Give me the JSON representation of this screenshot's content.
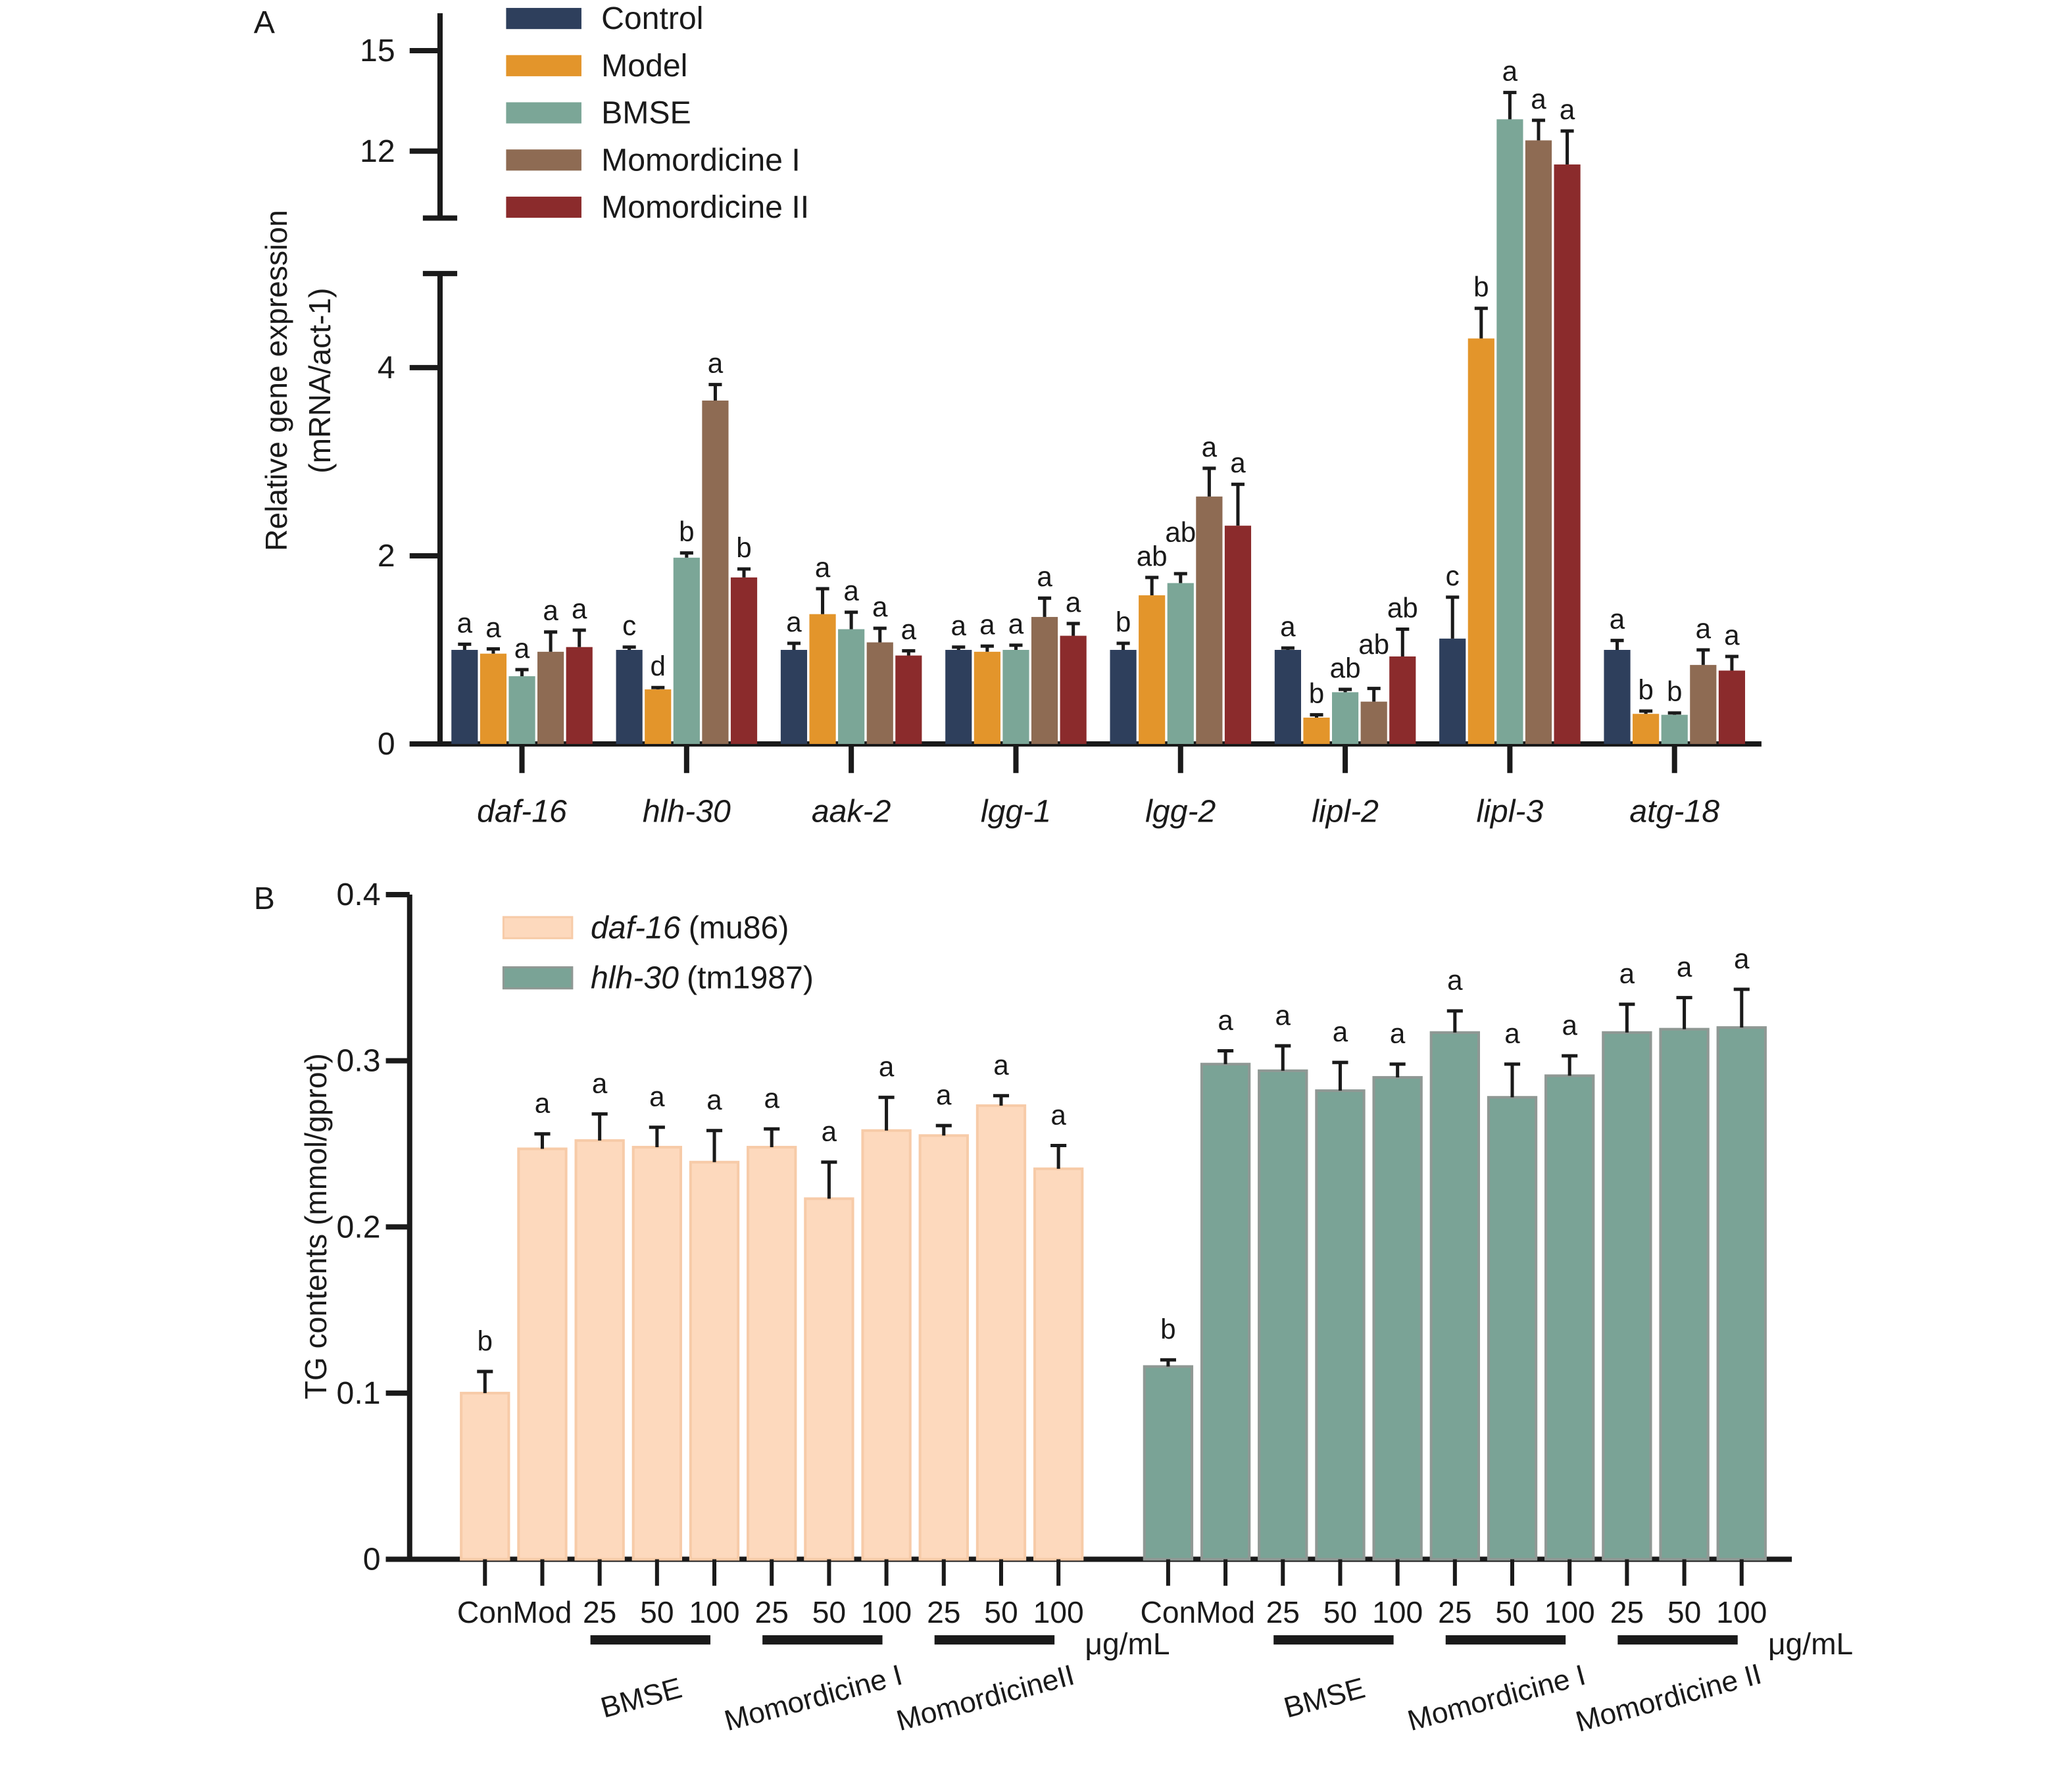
{
  "figure": {
    "panel_a_label": "A",
    "panel_b_label": "B"
  },
  "chart_data": [
    {
      "type": "bar",
      "ylabel_lines": [
        "Relative gene expression",
        "(mRNA/act-1)"
      ],
      "y_axis_break": true,
      "ylim_lower": [
        0,
        5
      ],
      "ylim_upper": [
        10,
        16
      ],
      "yticks_lower": [
        0,
        2,
        4
      ],
      "yticks_upper": [
        12,
        15
      ],
      "legend_position": "top-left",
      "categories": [
        "daf-16",
        "hlh-30",
        "aak-2",
        "lgg-1",
        "lgg-2",
        "lipl-2",
        "lipl-3",
        "atg-18"
      ],
      "series": [
        {
          "name": "Control",
          "color": "#2e3f5c",
          "values": [
            1.0,
            1.0,
            1.0,
            1.0,
            1.0,
            1.0,
            1.12,
            1.0
          ],
          "errors": [
            0.06,
            0.03,
            0.07,
            0.03,
            0.07,
            0.02,
            0.44,
            0.1
          ],
          "letters": [
            "a",
            "c",
            "a",
            "a",
            "b",
            "a",
            "c",
            "a"
          ]
        },
        {
          "name": "Model",
          "color": "#e3952b",
          "values": [
            0.96,
            0.58,
            1.38,
            0.98,
            1.58,
            0.28,
            4.31,
            0.32
          ],
          "errors": [
            0.05,
            0.02,
            0.27,
            0.06,
            0.19,
            0.03,
            0.32,
            0.03
          ],
          "letters": [
            "a",
            "d",
            "a",
            "a",
            "ab",
            "b",
            "b",
            "b"
          ]
        },
        {
          "name": "BMSE",
          "color": "#7ba697",
          "values": [
            0.72,
            1.98,
            1.22,
            1.0,
            1.71,
            0.55,
            12.95,
            0.31
          ],
          "errors": [
            0.07,
            0.05,
            0.18,
            0.05,
            0.1,
            0.03,
            0.8,
            0.02
          ],
          "letters": [
            "a",
            "b",
            "a",
            "a",
            "ab",
            "ab",
            "a",
            "b"
          ]
        },
        {
          "name": "Momordicine I",
          "color": "#8e6b53",
          "values": [
            0.98,
            3.65,
            1.08,
            1.35,
            2.63,
            0.45,
            12.32,
            0.84
          ],
          "errors": [
            0.21,
            0.17,
            0.15,
            0.2,
            0.3,
            0.14,
            0.6,
            0.16
          ],
          "letters": [
            "a",
            "a",
            "a",
            "a",
            "a",
            "ab",
            "a",
            "a"
          ]
        },
        {
          "name": "Momordicine II",
          "color": "#8b2b2c",
          "values": [
            1.03,
            1.77,
            0.94,
            1.15,
            2.32,
            0.93,
            11.6,
            0.78
          ],
          "errors": [
            0.18,
            0.09,
            0.05,
            0.13,
            0.44,
            0.29,
            1.0,
            0.15
          ],
          "letters": [
            "a",
            "b",
            "a",
            "a",
            "a",
            "ab",
            "a",
            "a"
          ]
        }
      ]
    },
    {
      "type": "bar",
      "ylabel": "TG contents (mmol/gprot)",
      "ylim": [
        0,
        0.4
      ],
      "yticks": [
        0,
        0.1,
        0.2,
        0.3,
        0.4
      ],
      "legend_position": "top-left",
      "groups": [
        {
          "strain": "daf-16",
          "allele": "(mu86)",
          "color": "#fdd9bd",
          "edge_color": "#f7cba8",
          "x_tick_labels": [
            "Con",
            "Mod",
            "25",
            "50",
            "100",
            "25",
            "50",
            "100",
            "25",
            "50",
            "100"
          ],
          "unit_label": "μg/mL",
          "treatment_labels": [
            "BMSE",
            "Momordicine I",
            "MomordicineII"
          ],
          "values": [
            0.1,
            0.247,
            0.252,
            0.248,
            0.239,
            0.248,
            0.217,
            0.258,
            0.255,
            0.273,
            0.235
          ],
          "errors": [
            0.013,
            0.009,
            0.016,
            0.012,
            0.019,
            0.011,
            0.022,
            0.02,
            0.006,
            0.006,
            0.014
          ],
          "letters": [
            "b",
            "a",
            "a",
            "a",
            "a",
            "a",
            "a",
            "a",
            "a",
            "a",
            "a"
          ]
        },
        {
          "strain": "hlh-30",
          "allele": "(tm1987)",
          "color": "#7aa396",
          "edge_color": "#8f9894",
          "x_tick_labels": [
            "Con",
            "Mod",
            "25",
            "50",
            "100",
            "25",
            "50",
            "100",
            "25",
            "50",
            "100"
          ],
          "unit_label": "μg/mL",
          "treatment_labels": [
            "BMSE",
            "Momordicine I",
            "Momordicine II"
          ],
          "values": [
            0.116,
            0.298,
            0.294,
            0.282,
            0.29,
            0.317,
            0.278,
            0.291,
            0.317,
            0.319,
            0.32
          ],
          "errors": [
            0.004,
            0.008,
            0.015,
            0.017,
            0.008,
            0.013,
            0.02,
            0.012,
            0.017,
            0.019,
            0.023
          ],
          "letters": [
            "b",
            "a",
            "a",
            "a",
            "a",
            "a",
            "a",
            "a",
            "a",
            "a",
            "a"
          ]
        }
      ]
    }
  ]
}
